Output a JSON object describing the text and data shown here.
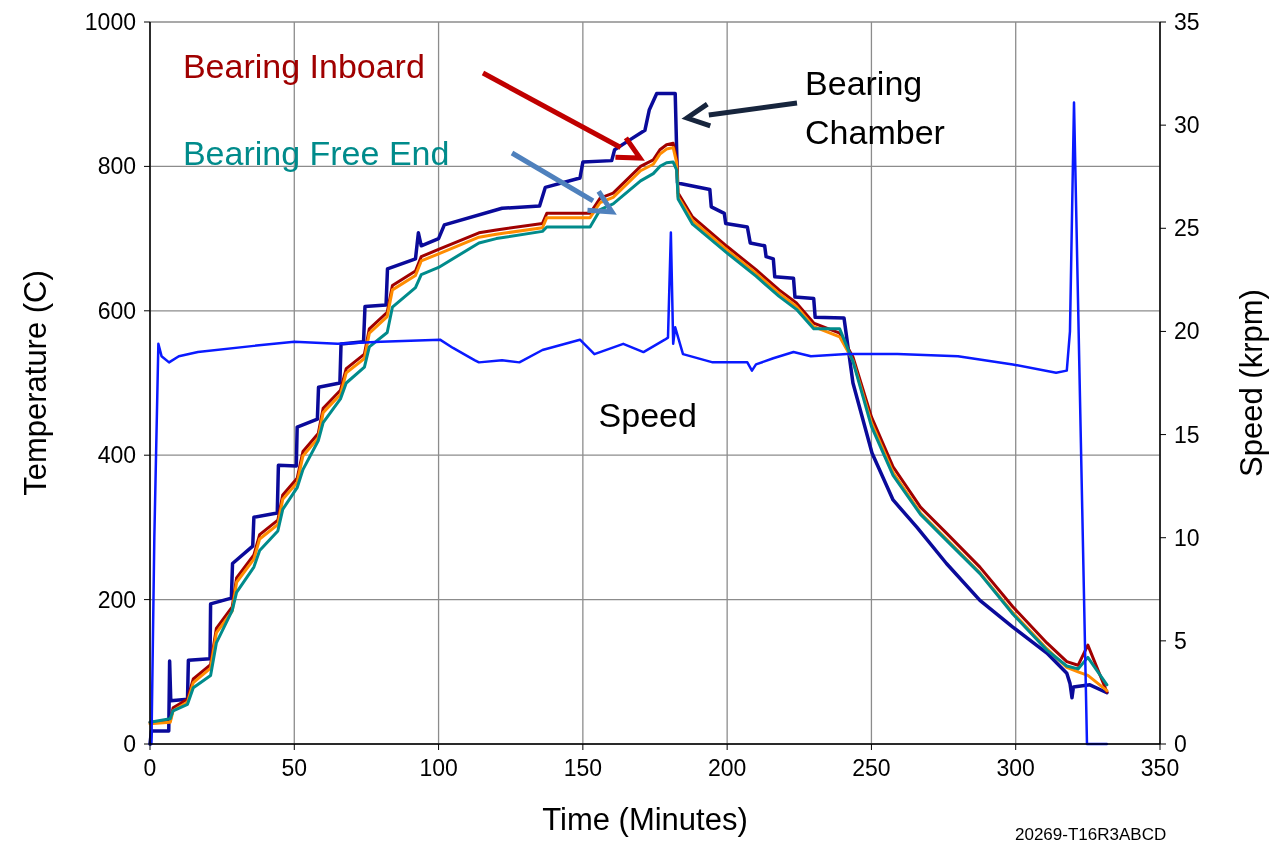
{
  "chart_data": {
    "type": "line",
    "xlabel": "Time (Minutes)",
    "ylabel": "Temperature (C)",
    "y2label": "Speed (krpm)",
    "xlim": [
      0,
      350
    ],
    "xticks": [
      0,
      50,
      100,
      150,
      200,
      250,
      300,
      350
    ],
    "ylim": [
      0,
      1000
    ],
    "yticks": [
      0,
      200,
      400,
      600,
      800,
      1000
    ],
    "y2lim": [
      0,
      35
    ],
    "y2ticks": [
      0,
      5,
      10,
      15,
      20,
      25,
      30,
      35
    ],
    "grid": true,
    "marker": "none",
    "line_style": "solid",
    "annotations": [
      "20269-T16R3ABCD"
    ],
    "series": [
      {
        "name": "Bearing Chamber",
        "color": "#0a0a9a",
        "x": [
          0,
          0.5,
          6.5,
          6.8,
          7.2,
          13,
          13.3,
          20.8,
          21,
          28.2,
          28.6,
          35.6,
          36,
          44.1,
          44.5,
          50.7,
          51,
          58,
          58.4,
          65.8,
          66.2,
          74,
          74.5,
          81.8,
          82.3,
          92,
          93,
          94,
          100,
          102,
          122,
          135,
          137,
          149,
          150,
          160,
          161,
          166,
          171.5,
          173,
          175.6,
          182,
          182.8,
          194,
          194.5,
          199,
          199.5,
          207,
          208,
          213,
          213.5,
          216,
          216.5,
          223,
          223.5,
          230,
          230.5,
          240.5,
          243.6,
          250.2,
          257.5,
          265.8,
          276,
          287.6,
          299,
          310.8,
          317.7,
          318.8,
          319.5,
          320,
          325.7,
          331.6
        ],
        "values": [
          0,
          18,
          18,
          115,
          60,
          62,
          116,
          118,
          194,
          202,
          250,
          274,
          314,
          320,
          386,
          385,
          439,
          450,
          494,
          500,
          554,
          557,
          606,
          608,
          658,
          672,
          708,
          690,
          700,
          719,
          742,
          745,
          771,
          784,
          806,
          808,
          823,
          836,
          850,
          878,
          901,
          901,
          777,
          768,
          744,
          735,
          721,
          716,
          694,
          690,
          675,
          672,
          647,
          645,
          619,
          617,
          591,
          590,
          500,
          403,
          338,
          300,
          250,
          199,
          162,
          126,
          98,
          84,
          64,
          79,
          82,
          71
        ]
      },
      {
        "name": "Bearing Inboard",
        "color": "#a00000",
        "x": [
          0,
          7,
          8,
          13,
          15,
          21,
          23,
          28.5,
          30,
          36,
          38,
          44.3,
          46,
          51,
          53,
          58.3,
          60,
          66,
          68,
          74.3,
          76,
          82.2,
          84,
          92,
          94,
          100,
          114,
          120,
          136,
          137.5,
          152.5,
          156,
          160.5,
          170,
          174.4,
          176.7,
          179,
          181.3,
          182.5,
          183,
          188,
          200,
          210,
          218,
          224,
          230,
          239,
          243.6,
          250,
          257.5,
          267,
          276,
          287.6,
          299,
          310.8,
          317.7,
          321.6,
          325,
          331.6
        ],
        "values": [
          30,
          32,
          50,
          62,
          90,
          110,
          160,
          190,
          230,
          262,
          290,
          310,
          345,
          368,
          405,
          430,
          465,
          490,
          520,
          540,
          575,
          598,
          635,
          655,
          675,
          685,
          708,
          712,
          721,
          735,
          735,
          756,
          763,
          800,
          809,
          823,
          830,
          832,
          810,
          763,
          730,
          689,
          657,
          629,
          611,
          583,
          569,
          536,
          453,
          384,
          328,
          292,
          245,
          190,
          140,
          114,
          109,
          137,
          72
        ]
      },
      {
        "color": "#ff8c00",
        "x": [
          0,
          7,
          8,
          13,
          15,
          21,
          23,
          28.5,
          30,
          36,
          38,
          44.3,
          46,
          51,
          53,
          58.3,
          60,
          66,
          68,
          74.3,
          76,
          82.2,
          84,
          92,
          94,
          100,
          114,
          120,
          136,
          137.5,
          152.5,
          156,
          160.5,
          170,
          174.4,
          176.7,
          179,
          181.3,
          182.5,
          183,
          188,
          200,
          210,
          218,
          224,
          230,
          239,
          243.6,
          250,
          257.5,
          267,
          276,
          287.6,
          299,
          310.8,
          317.7,
          321.6,
          325,
          331.6
        ],
        "values": [
          28,
          30,
          46,
          58,
          85,
          105,
          154,
          184,
          224,
          256,
          284,
          304,
          339,
          362,
          399,
          424,
          459,
          484,
          514,
          534,
          569,
          592,
          629,
          649,
          669,
          679,
          702,
          706,
          715,
          729,
          729,
          750,
          757,
          794,
          803,
          817,
          824,
          826,
          805,
          758,
          725,
          684,
          652,
          624,
          606,
          578,
          564,
          531,
          445,
          376,
          320,
          284,
          237,
          182,
          132,
          106,
          100,
          95,
          74
        ]
      },
      {
        "name": "Bearing Free End",
        "color": "#008b8b",
        "x": [
          0,
          7,
          8,
          13,
          15,
          21,
          23,
          28.5,
          30,
          36,
          38,
          44.3,
          46,
          51,
          53,
          58.3,
          60,
          66,
          68,
          74.3,
          76,
          82.2,
          84,
          92,
          94,
          100,
          114,
          120,
          136,
          137.5,
          152.5,
          156,
          160.5,
          170,
          174.4,
          176.7,
          179,
          181.3,
          182.5,
          183,
          188,
          200,
          210,
          218,
          224,
          230,
          239,
          243.6,
          250,
          257.5,
          267,
          276,
          287.6,
          299,
          310.8,
          317.7,
          321.6,
          325,
          331.6
        ],
        "values": [
          30,
          35,
          46,
          55,
          78,
          95,
          140,
          185,
          210,
          245,
          268,
          295,
          325,
          355,
          380,
          420,
          445,
          478,
          500,
          522,
          550,
          570,
          605,
          632,
          650,
          660,
          694,
          700,
          710,
          716,
          716,
          740,
          748,
          780,
          790,
          800,
          805,
          806,
          795,
          755,
          720,
          680,
          648,
          620,
          602,
          575,
          575,
          530,
          440,
          372,
          318,
          282,
          236,
          180,
          130,
          108,
          104,
          120,
          82
        ]
      },
      {
        "name": "Speed",
        "color": "#0a1aff",
        "axis": "y2",
        "x": [
          0,
          0.5,
          1.5,
          2.9,
          4,
          6.6,
          10,
          16.6,
          36,
          50,
          65,
          80,
          100.5,
          105,
          110,
          112.6,
          114,
          122,
          128,
          136,
          149,
          154,
          164,
          171,
          178.4,
          179.5,
          180.5,
          181.3,
          182,
          184.7,
          195,
          207,
          208.6,
          210,
          216,
          223,
          229,
          241.5,
          259,
          280,
          299,
          314,
          317.7,
          318.8,
          320.2,
          324.7,
          331.6
        ],
        "values": [
          0,
          0,
          10,
          19.4,
          18.8,
          18.5,
          18.8,
          19.0,
          19.3,
          19.5,
          19.4,
          19.5,
          19.6,
          19.2,
          18.8,
          18.6,
          18.5,
          18.6,
          18.5,
          19.1,
          19.6,
          18.9,
          19.4,
          19.0,
          19.6,
          19.7,
          24.8,
          19.4,
          20.2,
          18.9,
          18.5,
          18.5,
          18.1,
          18.4,
          18.7,
          19.0,
          18.8,
          18.9,
          18.9,
          18.8,
          18.4,
          18.0,
          18.1,
          20,
          31.1,
          0,
          0
        ]
      }
    ]
  }
}
